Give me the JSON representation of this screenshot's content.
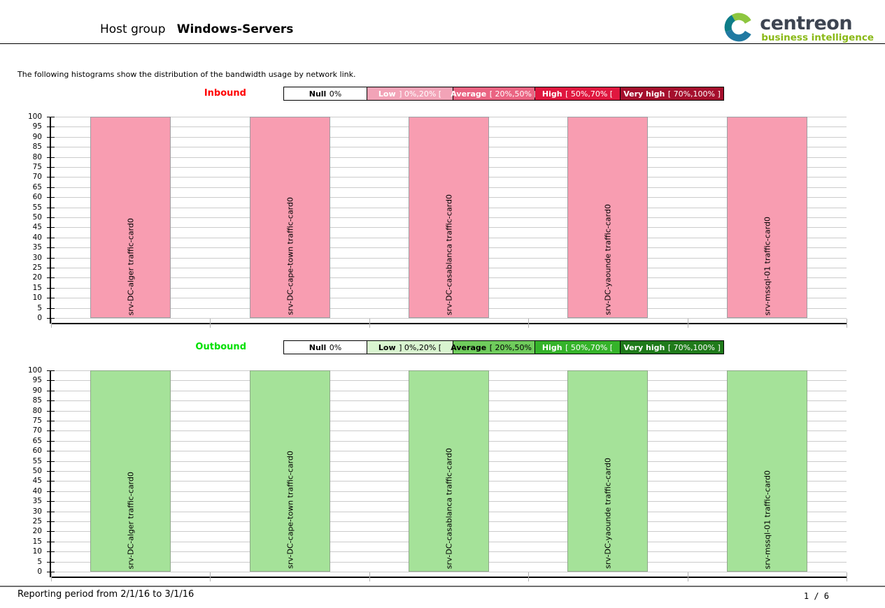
{
  "header": {
    "title_prefix": "Host group",
    "title_name": "Windows-Servers",
    "logo_brand": "centreon",
    "logo_tagline": "business intelligence",
    "logo_brand_color": "#3d4451",
    "logo_tagline_color": "#8ab917"
  },
  "intro_text": "The following histograms show the distribution of the bandwidth usage by network link.",
  "sections": [
    {
      "label": "Inbound",
      "label_color": "#FF0000",
      "legend": [
        {
          "name": "Null",
          "range": "0%",
          "bg": "#FFFFFF",
          "fg": "#000000"
        },
        {
          "name": "Low",
          "range": "] 0%,20% [",
          "bg": "#F2A3B7",
          "fg": "#FFFFFF"
        },
        {
          "name": "Average",
          "range": "[ 20%,50% [",
          "bg": "#EA6482",
          "fg": "#FFFFFF"
        },
        {
          "name": "High",
          "range": "[ 50%,70% [",
          "bg": "#E0173F",
          "fg": "#FFFFFF"
        },
        {
          "name": "Very high",
          "range": "[ 70%,100% ]",
          "bg": "#A50F2D",
          "fg": "#FFFFFF"
        }
      ]
    },
    {
      "label": "Outbound",
      "label_color": "#00E000",
      "legend": [
        {
          "name": "Null",
          "range": "0%",
          "bg": "#FFFFFF",
          "fg": "#000000"
        },
        {
          "name": "Low",
          "range": "] 0%,20% [",
          "bg": "#D9F4D0",
          "fg": "#000000"
        },
        {
          "name": "Average",
          "range": "[ 20%,50% [",
          "bg": "#6FCC5C",
          "fg": "#000000"
        },
        {
          "name": "High",
          "range": "[ 50%,70% [",
          "bg": "#35B32A",
          "fg": "#FFFFFF"
        },
        {
          "name": "Very high",
          "range": "[ 70%,100% ]",
          "bg": "#1F7A1A",
          "fg": "#FFFFFF"
        }
      ]
    }
  ],
  "chart_data": [
    {
      "type": "bar",
      "title": "Inbound",
      "categories": [
        "srv-DC-alger traffic-card0",
        "srv-DC-cape-town traffic-card0",
        "srv-DC-casablanca traffic-card0",
        "srv-DC-yaounde traffic-card0",
        "srv-mssql-01 traffic-card0"
      ],
      "values": [
        100,
        100,
        100,
        100,
        100
      ],
      "xlabel": "",
      "ylabel": "",
      "ylim": [
        0,
        100
      ],
      "ytick_step": 5,
      "grid": true,
      "legend_position": "none",
      "bar_color": "#F89DB1",
      "bar_border_color": "#9E9EA2"
    },
    {
      "type": "bar",
      "title": "Outbound",
      "categories": [
        "srv-DC-alger traffic-card0",
        "srv-DC-cape-town traffic-card0",
        "srv-DC-casablanca traffic-card0",
        "srv-DC-yaounde traffic-card0",
        "srv-mssql-01 traffic-card0"
      ],
      "values": [
        100,
        100,
        100,
        100,
        100
      ],
      "xlabel": "",
      "ylabel": "",
      "ylim": [
        0,
        100
      ],
      "ytick_step": 5,
      "grid": true,
      "legend_position": "none",
      "bar_color": "#A5E299",
      "bar_border_color": "#8FA88A"
    }
  ],
  "footer": {
    "reporting_period": "Reporting period from 2/1/16 to 3/1/16",
    "page_indicator": "1 / 6"
  }
}
